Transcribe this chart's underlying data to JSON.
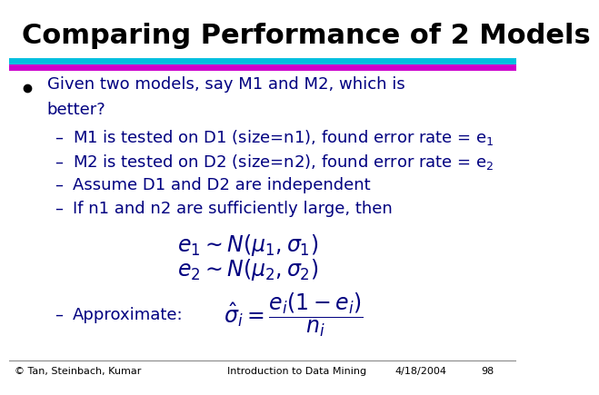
{
  "title": "Comparing Performance of 2 Models",
  "title_color": "#000000",
  "title_fontsize": 22,
  "bg_color": "#ffffff",
  "line1_color": "#00BFDF",
  "line2_color": "#CC00CC",
  "bullet_color": "#000000",
  "text_color": "#000080",
  "sub_text_color": "#000080",
  "content_fontsize": 13,
  "formula_fontsize": 14,
  "footer_color": "#000000",
  "footer_fontsize": 8,
  "footer_left": "© Tan, Steinbach, Kumar",
  "footer_center": "Introduction to Data Mining",
  "footer_right": "4/18/2004",
  "footer_page": "98"
}
